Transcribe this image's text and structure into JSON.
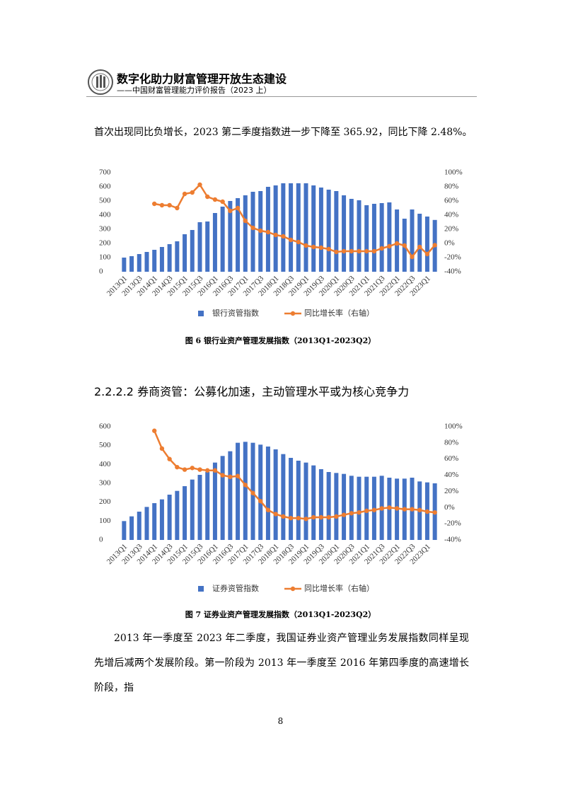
{
  "header": {
    "title": "数字化助力财富管理开放生态建设",
    "subtitle": "——中国财富管理能力评价报告（2023 上）"
  },
  "paragraphs": [
    "首次出现同比负增长，2023 第二季度指数进一步下降至 365.92，同比下降 2.48%。",
    "2013 年一季度至 2023 年二季度，我国证券业资产管理业务发展指数同样呈现先增后减两个发展阶段。第一阶段为 2013 年一季度至 2016 年第四季度的高速增长阶段，指"
  ],
  "heading": "2.2.2.2 券商资管：公募化加速，主动管理水平或为核心竞争力",
  "page_number": "8",
  "chart_data": [
    {
      "type": "combo",
      "caption": "图 6  银行业资产管理发展指数（2013Q1-2023Q2）",
      "categories": [
        "2013Q1",
        null,
        "2013Q3",
        null,
        "2014Q1",
        null,
        "2014Q3",
        null,
        "2015Q1",
        null,
        "2015Q3",
        null,
        "2016Q1",
        null,
        "2016Q3",
        null,
        "2017Q1",
        null,
        "2017Q3",
        null,
        "2018Q1",
        null,
        "2018Q3",
        null,
        "2019Q1",
        null,
        "2019Q3",
        null,
        "2020Q1",
        null,
        "2020Q3",
        null,
        "2021Q1",
        null,
        "2021Q3",
        null,
        "2022Q1",
        null,
        "2022Q3",
        null,
        "2023Q1",
        null
      ],
      "series": [
        {
          "name": "银行资管指数",
          "type": "bar",
          "color": "#4472c4",
          "values": [
            100,
            110,
            125,
            140,
            155,
            175,
            195,
            215,
            265,
            295,
            350,
            355,
            415,
            460,
            500,
            520,
            540,
            565,
            570,
            600,
            610,
            625,
            625,
            625,
            625,
            610,
            595,
            580,
            570,
            540,
            515,
            505,
            470,
            480,
            485,
            490,
            440,
            375,
            440,
            410,
            390,
            366
          ]
        },
        {
          "name": "同比增长率（右轴）",
          "type": "line",
          "axis": "y2",
          "color": "#ed7d31",
          "values": [
            null,
            null,
            null,
            null,
            56,
            54,
            54,
            50,
            70,
            72,
            83,
            66,
            62,
            59,
            46,
            50,
            32,
            22,
            18,
            16,
            12,
            10,
            5,
            2,
            -3,
            -5,
            -6,
            -8,
            -12,
            -11,
            -11,
            -11,
            -11,
            -11,
            -7,
            -4,
            0,
            -3,
            -19,
            -5,
            -15,
            -2.48
          ]
        }
      ],
      "ylim": [
        0,
        700
      ],
      "yticks": [
        0,
        100,
        200,
        300,
        400,
        500,
        600,
        700
      ],
      "y2lim": [
        -40,
        100
      ],
      "y2ticks": [
        {
          "value": -40,
          "label": "-40%"
        },
        {
          "value": -20,
          "label": "-20%"
        },
        {
          "value": 0,
          "label": "0%"
        },
        {
          "value": 20,
          "label": "20%"
        },
        {
          "value": 40,
          "label": "40%"
        },
        {
          "value": 60,
          "label": "60%"
        },
        {
          "value": 80,
          "label": "80%"
        },
        {
          "value": 100,
          "label": "100%"
        }
      ]
    },
    {
      "type": "combo",
      "caption": "图 7  证券业资产管理发展指数（2013Q1-2023Q2）",
      "categories": [
        "2013Q1",
        null,
        "2013Q3",
        null,
        "2014Q1",
        null,
        "2014Q3",
        null,
        "2015Q1",
        null,
        "2015Q3",
        null,
        "2016Q1",
        null,
        "2016Q3",
        null,
        "2017Q1",
        null,
        "2017Q3",
        null,
        "2018Q1",
        null,
        "2018Q3",
        null,
        "2019Q1",
        null,
        "2019Q3",
        null,
        "2020Q1",
        null,
        "2020Q3",
        null,
        "2021Q1",
        null,
        "2021Q3",
        null,
        "2022Q1",
        null,
        "2022Q3",
        null,
        "2023Q1",
        null
      ],
      "series": [
        {
          "name": "证券资管指数",
          "type": "bar",
          "color": "#4472c4",
          "values": [
            100,
            125,
            150,
            175,
            195,
            215,
            240,
            260,
            285,
            320,
            345,
            360,
            410,
            445,
            470,
            515,
            520,
            515,
            505,
            495,
            480,
            455,
            435,
            420,
            410,
            395,
            375,
            360,
            355,
            350,
            340,
            335,
            335,
            335,
            340,
            330,
            325,
            325,
            330,
            310,
            305,
            300
          ]
        },
        {
          "name": "同比增长率（右轴）",
          "type": "line",
          "axis": "y2",
          "color": "#ed7d31",
          "values": [
            null,
            null,
            null,
            null,
            95,
            73,
            60,
            50,
            47,
            49,
            47,
            46,
            46,
            40,
            38,
            39,
            28,
            18,
            8,
            -3,
            -8,
            -11,
            -13,
            -13,
            -14,
            -12,
            -12,
            -12,
            -11,
            -9,
            -7,
            -6,
            -4,
            -3,
            -1,
            0,
            -1,
            -2,
            -2,
            -3,
            -5,
            -6
          ]
        }
      ],
      "ylim": [
        0,
        600
      ],
      "yticks": [
        0,
        100,
        200,
        300,
        400,
        500,
        600
      ],
      "y2lim": [
        -40,
        100
      ],
      "y2ticks": [
        {
          "value": -40,
          "label": "-40%"
        },
        {
          "value": -20,
          "label": "-20%"
        },
        {
          "value": 0,
          "label": "0%"
        },
        {
          "value": 20,
          "label": "20%"
        },
        {
          "value": 40,
          "label": "40%"
        },
        {
          "value": 60,
          "label": "60%"
        },
        {
          "value": 80,
          "label": "80%"
        },
        {
          "value": 100,
          "label": "100%"
        }
      ]
    }
  ]
}
